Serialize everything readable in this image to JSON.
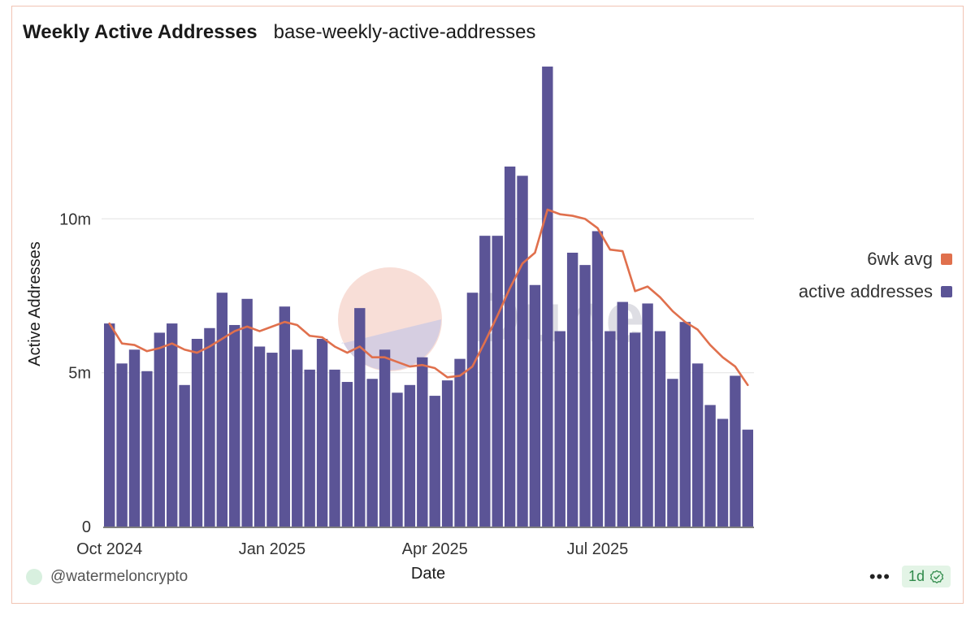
{
  "header": {
    "title": "Weekly Active Addresses",
    "subtitle": "base-weekly-active-addresses"
  },
  "footer": {
    "username": "@watermeloncrypto",
    "more_label": "•••",
    "refresh_label": "1d"
  },
  "watermark": {
    "text": "Dune"
  },
  "colors": {
    "bar": "#5b5496",
    "line": "#e0704d",
    "grid": "#e6e6e6",
    "card_border": "#f1c4b4"
  },
  "icons": [
    "avatar",
    "more-horizontal-icon",
    "check-badge-icon"
  ],
  "chart_data": {
    "type": "bar",
    "xlabel": "Date",
    "ylabel": "Active Addresses",
    "ylim": [
      0,
      15000000
    ],
    "yticks": [
      {
        "value": 0,
        "label": "0"
      },
      {
        "value": 5000000,
        "label": "5m"
      },
      {
        "value": 10000000,
        "label": "10m"
      }
    ],
    "xticks": [
      {
        "index": 0,
        "label": "Oct 2024"
      },
      {
        "index": 13,
        "label": "Jan 2025"
      },
      {
        "index": 26,
        "label": "Apr 2025"
      },
      {
        "index": 39,
        "label": "Jul 2025"
      }
    ],
    "x_start": "2024-09-30",
    "x_interval": "1 week",
    "legend_position": "right",
    "grid": true,
    "series": [
      {
        "name": "active addresses",
        "type": "bar",
        "color": "#5b5496",
        "values": [
          6.6,
          5.3,
          5.75,
          5.05,
          6.3,
          6.6,
          4.6,
          6.1,
          6.45,
          7.6,
          6.55,
          7.4,
          5.85,
          5.65,
          7.15,
          5.75,
          5.1,
          6.1,
          5.1,
          4.7,
          7.1,
          4.8,
          5.75,
          4.35,
          4.6,
          5.5,
          4.25,
          4.75,
          5.45,
          7.6,
          9.45,
          9.45,
          11.7,
          11.4,
          7.85,
          14.95,
          6.35,
          8.9,
          8.5,
          9.6,
          6.35,
          7.3,
          6.3,
          7.25,
          6.35,
          4.8,
          6.65,
          5.3,
          3.95,
          3.5,
          4.9,
          3.15
        ]
      },
      {
        "name": "6wk avg",
        "type": "line",
        "color": "#e0704d",
        "values": [
          6.6,
          5.95,
          5.9,
          5.7,
          5.8,
          5.95,
          5.75,
          5.65,
          5.85,
          6.1,
          6.35,
          6.5,
          6.35,
          6.5,
          6.65,
          6.55,
          6.2,
          6.15,
          5.85,
          5.65,
          5.85,
          5.5,
          5.5,
          5.35,
          5.2,
          5.25,
          5.15,
          4.85,
          4.9,
          5.2,
          6.0,
          6.85,
          7.75,
          8.55,
          8.9,
          10.3,
          10.15,
          10.1,
          10.0,
          9.7,
          9.0,
          8.95,
          7.65,
          7.8,
          7.45,
          7.0,
          6.65,
          6.4,
          5.9,
          5.5,
          5.2,
          4.6
        ]
      }
    ]
  }
}
